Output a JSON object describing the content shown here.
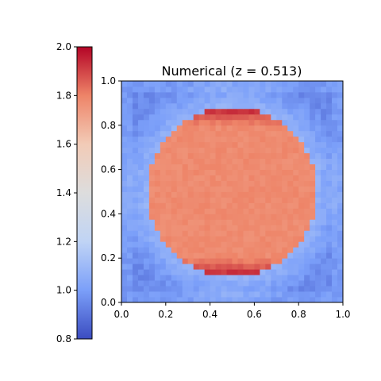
{
  "chart_data": {
    "type": "heatmap",
    "title": "Numerical (z = 0.513)",
    "xlabel": "",
    "ylabel": "",
    "xlim": [
      0.0,
      1.0
    ],
    "ylim": [
      0.0,
      1.0
    ],
    "x_ticks": [
      "0.0",
      "0.2",
      "0.4",
      "0.6",
      "0.8",
      "1.0"
    ],
    "y_ticks": [
      "0.0",
      "0.2",
      "0.4",
      "0.6",
      "0.8",
      "1.0"
    ],
    "grid_resolution": 40,
    "colormap": "coolwarm",
    "colormap_stops": [
      "#3b4cc0",
      "#7b9ff9",
      "#c0d4f5",
      "#dddddd",
      "#f2cbb7",
      "#ee8468",
      "#b40426"
    ],
    "colorbar": {
      "range": [
        0.8,
        2.0
      ],
      "placement": "left",
      "ticks": [
        "0.8",
        "1.0",
        "1.2",
        "1.4",
        "1.6",
        "1.8",
        "2.0"
      ]
    },
    "field": {
      "shape": "disk",
      "center": [
        0.5,
        0.5
      ],
      "radius": 0.385,
      "inside_value": 1.78,
      "outside_value": 0.95,
      "edge_peak_value": 1.98
    },
    "grid": false,
    "legend": "none"
  }
}
